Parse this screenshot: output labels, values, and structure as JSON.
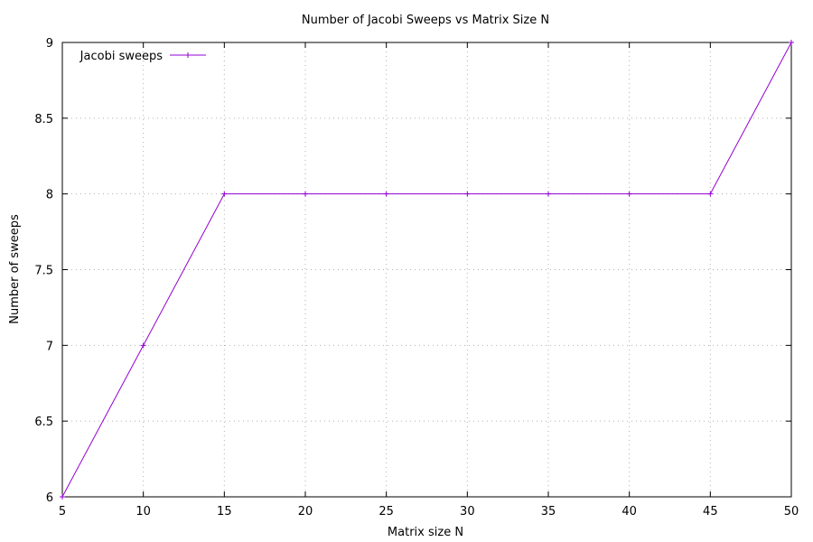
{
  "chart_data": {
    "type": "line",
    "title": "Number of Jacobi Sweeps vs Matrix Size N",
    "xlabel": "Matrix size N",
    "ylabel": "Number of sweeps",
    "xlim": [
      5,
      50
    ],
    "ylim": [
      6,
      9
    ],
    "xticks": [
      "5",
      "10",
      "15",
      "20",
      "25",
      "30",
      "35",
      "40",
      "45",
      "50"
    ],
    "yticks": [
      "6",
      "6.5",
      "7",
      "7.5",
      "8",
      "8.5",
      "9"
    ],
    "grid": true,
    "legend_position": "top-left",
    "series": [
      {
        "name": "Jacobi sweeps",
        "color": "#9400d3",
        "marker": "plus",
        "x": [
          5,
          10,
          15,
          20,
          25,
          30,
          35,
          40,
          45,
          50
        ],
        "y": [
          6,
          7,
          8,
          8,
          8,
          8,
          8,
          8,
          8,
          9
        ]
      }
    ]
  }
}
